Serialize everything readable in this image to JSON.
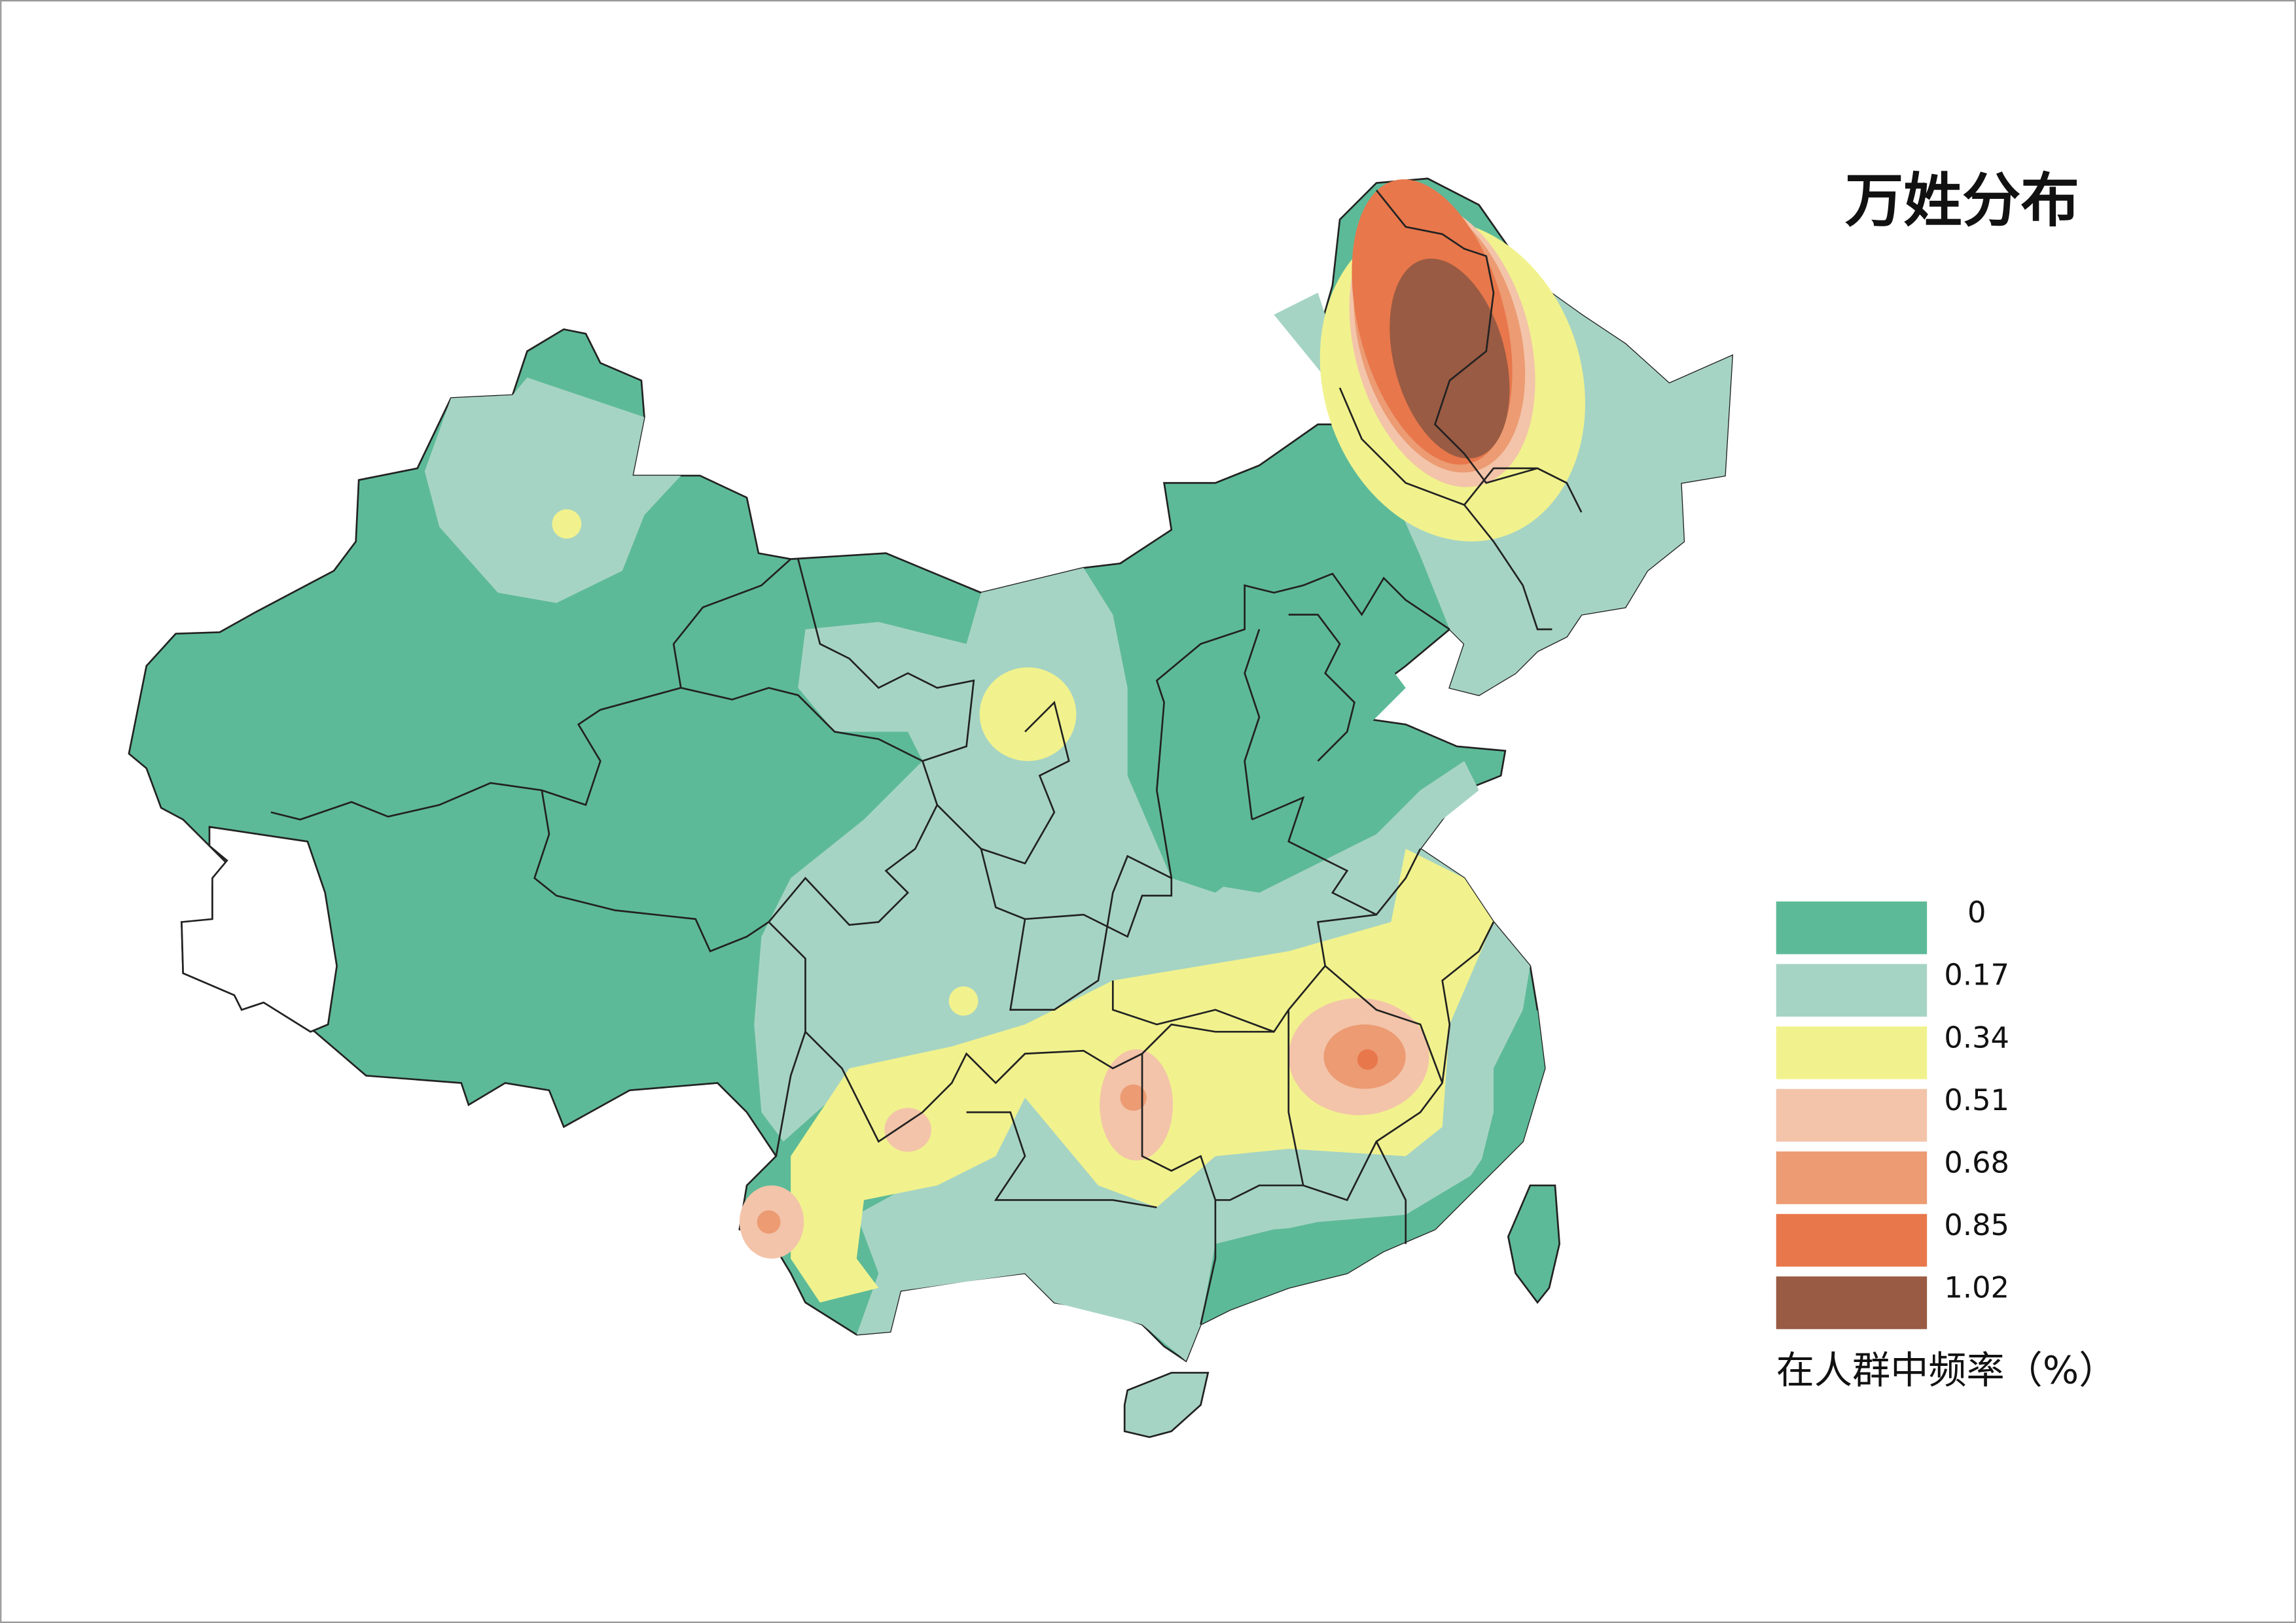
{
  "title": "万姓分布",
  "legend": {
    "title": "在人群中频率（%）",
    "items": [
      {
        "label": "0",
        "color": "#5dba98"
      },
      {
        "label": "0.17",
        "color": "#a6d4c4"
      },
      {
        "label": "0.34",
        "color": "#f1f28d"
      },
      {
        "label": "0.51",
        "color": "#f3c4a9"
      },
      {
        "label": "0.68",
        "color": "#ec9b73"
      },
      {
        "label": "0.85",
        "color": "#e8774b"
      },
      {
        "label": "1.02",
        "color": "#995b43"
      }
    ]
  }
}
